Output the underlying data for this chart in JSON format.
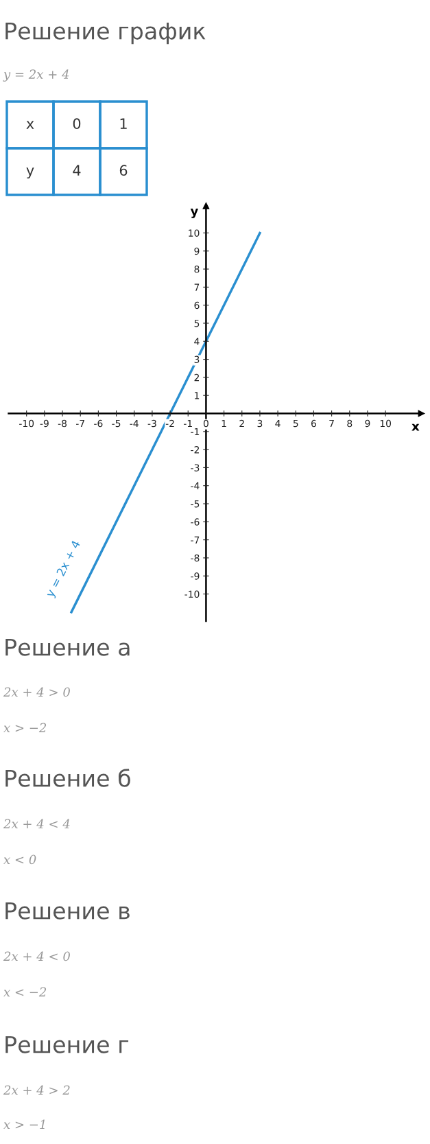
{
  "chart_data": {
    "type": "line",
    "title": "Решение график",
    "subtitle": "y = 2x + 4",
    "xlabel": "x",
    "ylabel": "y",
    "xlim": [
      -11,
      12
    ],
    "ylim": [
      -11.5,
      11.5
    ],
    "xticks": [
      -10,
      -9,
      -8,
      -7,
      -6,
      -5,
      -4,
      -3,
      -2,
      -1,
      0,
      1,
      2,
      3,
      4,
      5,
      6,
      7,
      8,
      9,
      10
    ],
    "yticks": [
      -10,
      -9,
      -8,
      -7,
      -6,
      -5,
      -4,
      -3,
      -2,
      -1,
      1,
      2,
      3,
      4,
      5,
      6,
      7,
      8,
      9,
      10
    ],
    "grid": false,
    "marker": "none",
    "line_style": "solid",
    "series": [
      {
        "color": "#2a8fd0",
        "x": [
          -7.5,
          3
        ],
        "values": [
          -11,
          10
        ]
      }
    ],
    "annotations": [
      "y = 2x + 4",
      "x",
      "0",
      "1",
      "y",
      "4",
      "6",
      "Решение а",
      "2x + 4 > 0",
      "x > −2",
      "Решение б",
      "2x + 4 < 4",
      "x < 0",
      "Решение в",
      "2x + 4 < 0",
      "x < −2",
      "Решение г",
      "2x + 4 > 2",
      "x > −1"
    ]
  }
}
